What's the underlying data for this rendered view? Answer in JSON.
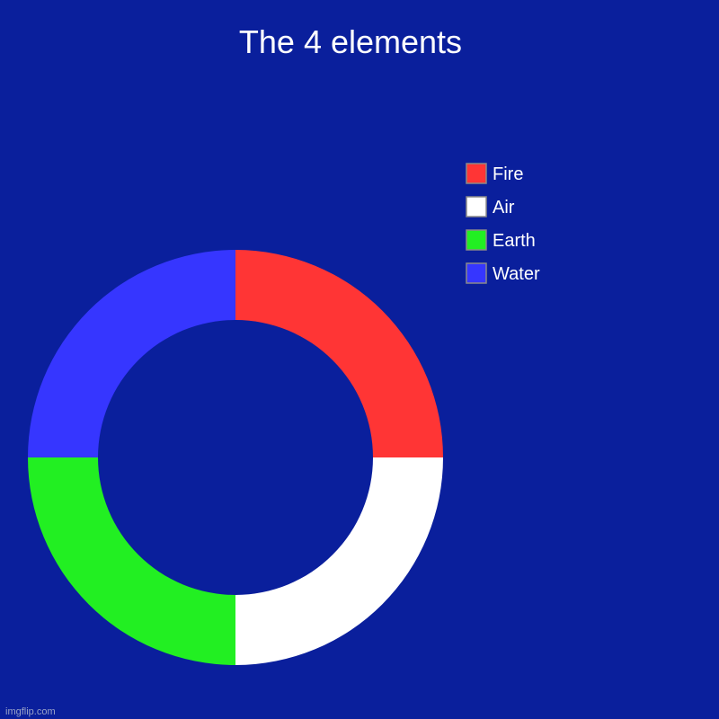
{
  "chart_data": {
    "type": "pie",
    "variant": "donut",
    "title": "The 4 elements",
    "labels": [
      "Fire",
      "Air",
      "Earth",
      "Water"
    ],
    "values": [
      25,
      25,
      25,
      25
    ],
    "colors": [
      "#ff3535",
      "#ffffff",
      "#22ef22",
      "#3636ff"
    ],
    "background": "#0a1f9c",
    "legend": {
      "position": "top-right",
      "labels": [
        "Fire",
        "Air",
        "Earth",
        "Water"
      ]
    }
  },
  "watermark": "imgflip.com"
}
